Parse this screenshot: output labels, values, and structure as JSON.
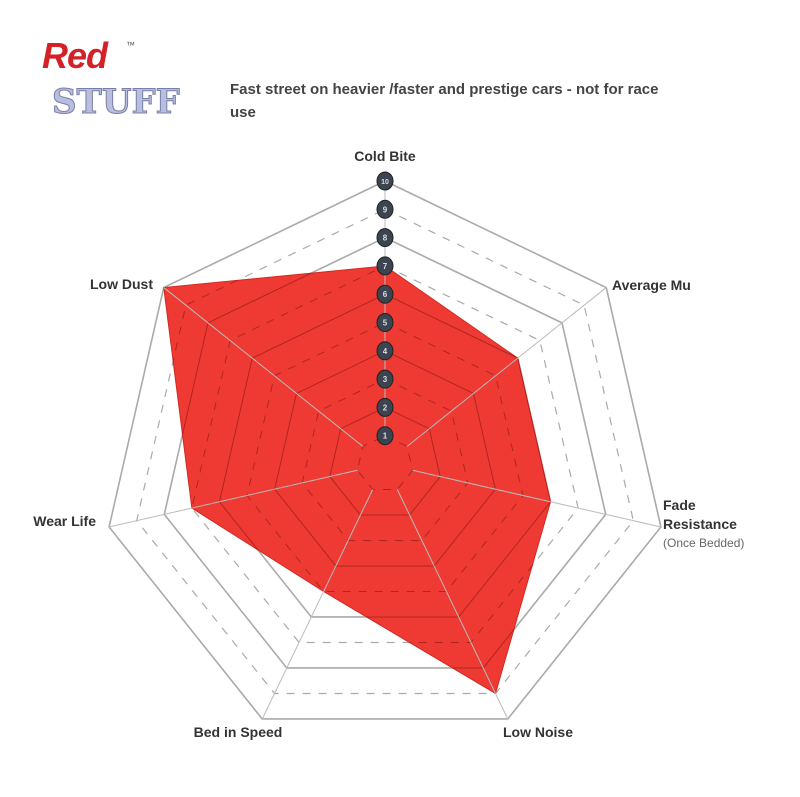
{
  "logo": {
    "word1": "Red",
    "word2": "STUFF",
    "tm": "™"
  },
  "chart_data": {
    "type": "radar",
    "title": "Fast street on heavier /faster and prestige cars - not for race use",
    "axes": [
      "Cold Bite",
      "Average Mu",
      "Fade Resistance",
      "Low Noise",
      "Bed in Speed",
      "Wear Life",
      "Low Dust"
    ],
    "axis_sublabels": {
      "Fade Resistance": "(Once Bedded)"
    },
    "values": [
      7,
      6,
      6,
      9,
      5,
      7,
      10
    ],
    "range": [
      0,
      10
    ],
    "tick_labels": [
      "1",
      "2",
      "3",
      "4",
      "5",
      "6",
      "7",
      "8",
      "9",
      "10"
    ],
    "fill_color": "#ee3a32",
    "grid": true
  }
}
